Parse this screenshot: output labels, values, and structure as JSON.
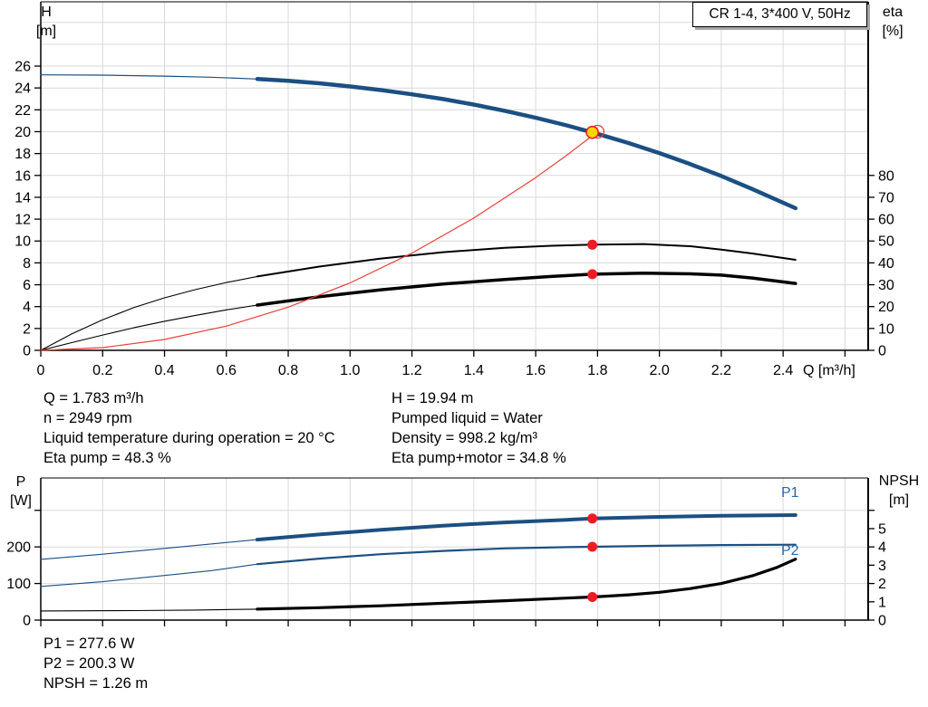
{
  "title_box": {
    "label": "CR 1-4, 3*400 V, 50Hz"
  },
  "operating_info": {
    "left_column": [
      "Q = 1.783 m³/h",
      "n = 2949 rpm",
      "Liquid temperature during operation = 20 °C",
      "Eta pump = 48.3 %"
    ],
    "right_column": [
      "H = 19.94 m",
      "Pumped liquid = Water",
      "Density = 998.2 kg/m³",
      "Eta pump+motor = 34.8 %"
    ]
  },
  "power_info": [
    "P1 = 277.6 W",
    "P2 = 200.3 W",
    "NPSH = 1.26 m"
  ],
  "colors": {
    "grid": "#d9d9d9",
    "axis": "#000000",
    "curve_blue": "#1c4f82",
    "curve_black": "#000000",
    "system_curve_red": "#e84038",
    "point_red": "#ed1c24",
    "duty_yellow": "#ffd400",
    "series_label_blue": "#2668a8"
  },
  "chart_data": [
    {
      "type": "line",
      "name": "head-efficiency-chart",
      "title": "CR 1-4, 3*400 V, 50Hz",
      "grid": true,
      "x_axis": {
        "label": "Q [m³/h]",
        "min": 0,
        "max": 2.675,
        "tick_values": [
          0,
          0.2,
          0.4,
          0.6,
          0.8,
          1.0,
          1.2,
          1.4,
          1.6,
          1.8,
          2.0,
          2.2,
          2.4,
          2.6
        ],
        "tick_labels": [
          "0",
          "0.2",
          "0.4",
          "0.6",
          "0.8",
          "1.0",
          "1.2",
          "1.4",
          "1.6",
          "1.8",
          "2.0",
          "2.2",
          "2.4",
          ""
        ],
        "grid_values": [
          0.2,
          0.4,
          0.6,
          0.8,
          1.0,
          1.2,
          1.4,
          1.6,
          1.8,
          2.0,
          2.2,
          2.4,
          2.6
        ]
      },
      "y_left": {
        "label": "H [m]",
        "label_lines": [
          "H",
          "[m]"
        ],
        "min": 0,
        "max": 31.88,
        "tick_values": [
          0,
          2,
          4,
          6,
          8,
          10,
          12,
          14,
          16,
          18,
          20,
          22,
          24,
          26
        ],
        "tick_labels": [
          "0",
          "2",
          "4",
          "6",
          "8",
          "10",
          "12",
          "14",
          "16",
          "18",
          "20",
          "22",
          "24",
          "26"
        ],
        "grid_values": [
          2,
          4,
          6,
          8,
          10,
          12,
          14,
          16,
          18,
          20,
          22,
          24,
          26,
          28,
          30
        ]
      },
      "y_right": {
        "label": "eta [%]",
        "label_lines": [
          "eta",
          "[%]"
        ],
        "min": 0,
        "max": 159.4,
        "tick_values": [
          0,
          10,
          20,
          30,
          40,
          50,
          60,
          70,
          80
        ],
        "tick_labels": [
          "0",
          "10",
          "20",
          "30",
          "40",
          "50",
          "60",
          "70",
          "80"
        ],
        "grid_values": []
      },
      "series": [
        {
          "name": "eta-pump-curve-lead",
          "axis": "right",
          "color": "#000000",
          "width": 1.1,
          "points": [
            [
              0,
              0
            ],
            [
              0.1,
              7.5
            ],
            [
              0.2,
              14
            ],
            [
              0.3,
              19.5
            ],
            [
              0.4,
              24
            ],
            [
              0.5,
              27.8
            ],
            [
              0.6,
              31
            ],
            [
              0.7,
              33.8
            ]
          ]
        },
        {
          "name": "eta-pump-curve",
          "label": "",
          "axis": "right",
          "color": "#000000",
          "width": 2,
          "points": [
            [
              0.7,
              33.8
            ],
            [
              0.9,
              38.3
            ],
            [
              1.1,
              42
            ],
            [
              1.3,
              44.9
            ],
            [
              1.5,
              46.9
            ],
            [
              1.65,
              47.8
            ],
            [
              1.783,
              48.3
            ],
            [
              1.95,
              48.6
            ],
            [
              2.1,
              47.6
            ],
            [
              2.2,
              46.1
            ],
            [
              2.3,
              44.3
            ],
            [
              2.44,
              41.4
            ]
          ]
        },
        {
          "name": "eta-pump-motor-curve-lead",
          "axis": "right",
          "color": "#000000",
          "width": 1.1,
          "points": [
            [
              0,
              0
            ],
            [
              0.1,
              3.5
            ],
            [
              0.2,
              7
            ],
            [
              0.3,
              10.3
            ],
            [
              0.4,
              13.3
            ],
            [
              0.5,
              16
            ],
            [
              0.6,
              18.5
            ],
            [
              0.7,
              20.7
            ]
          ]
        },
        {
          "name": "eta-pump-motor-curve",
          "label": "",
          "axis": "right",
          "color": "#000000",
          "width": 3.5,
          "points": [
            [
              0.7,
              20.7
            ],
            [
              0.9,
              24.5
            ],
            [
              1.1,
              27.7
            ],
            [
              1.3,
              30.3
            ],
            [
              1.5,
              32.4
            ],
            [
              1.65,
              33.8
            ],
            [
              1.783,
              34.8
            ],
            [
              1.95,
              35.3
            ],
            [
              2.1,
              35.0
            ],
            [
              2.2,
              34.4
            ],
            [
              2.3,
              33.1
            ],
            [
              2.44,
              30.6
            ]
          ]
        },
        {
          "name": "system-curve",
          "axis": "left",
          "color": "#e84038",
          "width": 1.2,
          "points": [
            [
              0,
              0
            ],
            [
              0.2,
              0.25
            ],
            [
              0.4,
              0.99
            ],
            [
              0.6,
              2.22
            ],
            [
              0.8,
              3.95
            ],
            [
              1,
              6.17
            ],
            [
              1.2,
              8.89
            ],
            [
              1.4,
              12.1
            ],
            [
              1.6,
              15.8
            ],
            [
              1.7,
              17.84
            ],
            [
              1.8,
              20
            ]
          ]
        },
        {
          "name": "head-curve-lead",
          "axis": "left",
          "color": "#1c4f82",
          "width": 1.2,
          "points": [
            [
              0,
              25.2
            ],
            [
              0.2,
              25.17
            ],
            [
              0.4,
              25.08
            ],
            [
              0.55,
              24.98
            ],
            [
              0.7,
              24.82
            ]
          ]
        },
        {
          "name": "head-curve",
          "label": "",
          "axis": "left",
          "color": "#1c4f82",
          "width": 4.5,
          "points": [
            [
              0.7,
              24.82
            ],
            [
              0.8,
              24.65
            ],
            [
              0.9,
              24.43
            ],
            [
              1,
              24.14
            ],
            [
              1.1,
              23.81
            ],
            [
              1.2,
              23.42
            ],
            [
              1.3,
              22.99
            ],
            [
              1.4,
              22.48
            ],
            [
              1.5,
              21.91
            ],
            [
              1.6,
              21.27
            ],
            [
              1.7,
              20.58
            ],
            [
              1.783,
              19.94
            ],
            [
              1.9,
              18.96
            ],
            [
              2,
              18.04
            ],
            [
              2.1,
              17.03
            ],
            [
              2.2,
              15.95
            ],
            [
              2.3,
              14.76
            ],
            [
              2.44,
              13.0
            ]
          ]
        }
      ],
      "markers": [
        {
          "name": "requested-duty-point",
          "type": "open",
          "axis": "left",
          "x": 1.8,
          "y": 20,
          "r": 7,
          "color": "#e84038"
        },
        {
          "name": "duty-point",
          "type": "duty",
          "axis": "left",
          "x": 1.783,
          "y": 19.94,
          "r": 6.5,
          "fill": "#ffd400",
          "stroke": "#ed1c24"
        },
        {
          "name": "eta-pump-point",
          "type": "dot",
          "axis": "right",
          "x": 1.783,
          "y": 48.3,
          "r": 5.5,
          "color": "#ed1c24"
        },
        {
          "name": "eta-pump-motor-point",
          "type": "dot",
          "axis": "right",
          "x": 1.783,
          "y": 34.8,
          "r": 5.5,
          "color": "#ed1c24"
        }
      ]
    },
    {
      "type": "line",
      "name": "power-npsh-chart",
      "title": "",
      "grid": true,
      "x_axis": {
        "label": "",
        "min": 0,
        "max": 2.675,
        "tick_values": [
          0,
          0.2,
          0.4,
          0.6,
          0.8,
          1.0,
          1.2,
          1.4,
          1.6,
          1.8,
          2.0,
          2.2,
          2.4,
          2.6
        ],
        "tick_labels": [
          "",
          "",
          "",
          "",
          "",
          "",
          "",
          "",
          "",
          "",
          "",
          "",
          "",
          ""
        ],
        "grid_values": [
          0.2,
          0.4,
          0.6,
          0.8,
          1.0,
          1.2,
          1.4,
          1.6,
          1.8,
          2.0,
          2.2,
          2.4,
          2.6
        ]
      },
      "y_left": {
        "label": "P [W]",
        "label_lines": [
          "P",
          "[W]"
        ],
        "min": 0,
        "max": 388.4,
        "tick_values": [
          0,
          100,
          200,
          300
        ],
        "tick_labels": [
          "0",
          "100",
          "200",
          ""
        ],
        "grid_values": [
          100,
          200,
          300
        ]
      },
      "y_right": {
        "label": "NPSH [m]",
        "label_lines": [
          "NPSH",
          "[m]"
        ],
        "min": 0,
        "max": 7.768,
        "tick_values": [
          0,
          1,
          2,
          3,
          4,
          5,
          6
        ],
        "tick_labels": [
          "0",
          "1",
          "2",
          "3",
          "4",
          "5",
          ""
        ],
        "grid_values": []
      },
      "series": [
        {
          "name": "p1-curve-lead",
          "axis": "left",
          "color": "#1c4f82",
          "width": 1.1,
          "points": [
            [
              0,
              166
            ],
            [
              0.2,
              180
            ],
            [
              0.4,
              196
            ],
            [
              0.55,
              208
            ],
            [
              0.7,
              220
            ]
          ]
        },
        {
          "name": "p1-curve",
          "label": "P1",
          "axis": "left",
          "color": "#1c4f82",
          "width": 4,
          "points": [
            [
              0.7,
              220
            ],
            [
              0.9,
              234
            ],
            [
              1.1,
              247
            ],
            [
              1.3,
              258
            ],
            [
              1.5,
              267
            ],
            [
              1.7,
              274
            ],
            [
              1.783,
              277.6
            ],
            [
              2,
              282
            ],
            [
              2.2,
              285
            ],
            [
              2.44,
              287
            ]
          ]
        },
        {
          "name": "p2-curve-lead",
          "axis": "left",
          "color": "#1c4f82",
          "width": 1.1,
          "points": [
            [
              0,
              92
            ],
            [
              0.2,
              105
            ],
            [
              0.4,
              122
            ],
            [
              0.55,
              135
            ],
            [
              0.7,
              153
            ]
          ]
        },
        {
          "name": "p2-curve",
          "label": "P2",
          "axis": "left",
          "color": "#1c4f82",
          "width": 2.2,
          "points": [
            [
              0.7,
              153
            ],
            [
              0.9,
              168
            ],
            [
              1.1,
              180
            ],
            [
              1.3,
              189
            ],
            [
              1.5,
              196
            ],
            [
              1.7,
              199.5
            ],
            [
              1.783,
              200.3
            ],
            [
              2,
              203
            ],
            [
              2.2,
              205
            ],
            [
              2.44,
              206
            ]
          ]
        },
        {
          "name": "npsh-curve-lead",
          "axis": "right",
          "color": "#000000",
          "width": 1.1,
          "points": [
            [
              0,
              0.5
            ],
            [
              0.3,
              0.52
            ],
            [
              0.5,
              0.55
            ],
            [
              0.7,
              0.6
            ]
          ]
        },
        {
          "name": "npsh-curve",
          "label": "",
          "axis": "right",
          "color": "#000000",
          "width": 3.2,
          "points": [
            [
              0.7,
              0.6
            ],
            [
              0.9,
              0.68
            ],
            [
              1.1,
              0.78
            ],
            [
              1.3,
              0.92
            ],
            [
              1.5,
              1.06
            ],
            [
              1.7,
              1.2
            ],
            [
              1.783,
              1.26
            ],
            [
              1.9,
              1.38
            ],
            [
              2,
              1.52
            ],
            [
              2.1,
              1.72
            ],
            [
              2.2,
              2.0
            ],
            [
              2.3,
              2.42
            ],
            [
              2.38,
              2.88
            ],
            [
              2.44,
              3.33
            ]
          ]
        }
      ],
      "markers": [
        {
          "name": "p1-point",
          "type": "dot",
          "axis": "left",
          "x": 1.783,
          "y": 277.6,
          "r": 5.5,
          "color": "#ed1c24"
        },
        {
          "name": "p2-point",
          "type": "dot",
          "axis": "left",
          "x": 1.783,
          "y": 200.3,
          "r": 5.5,
          "color": "#ed1c24"
        },
        {
          "name": "npsh-point",
          "type": "dot",
          "axis": "right",
          "x": 1.783,
          "y": 1.26,
          "r": 5.5,
          "color": "#ed1c24"
        }
      ]
    }
  ]
}
